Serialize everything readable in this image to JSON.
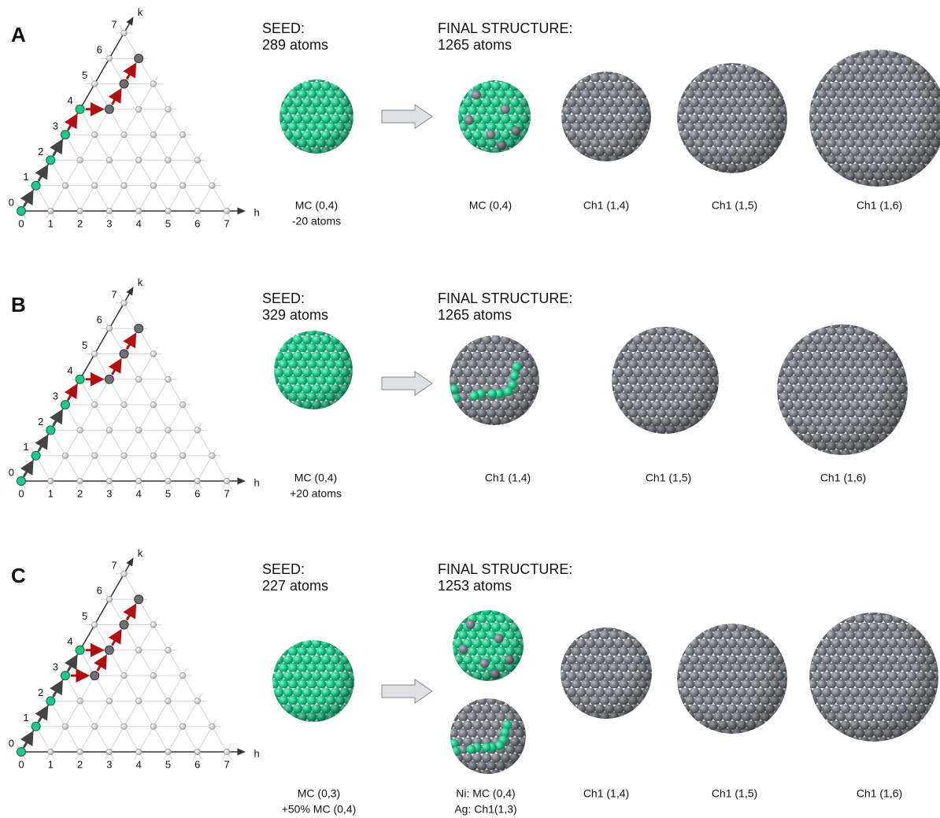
{
  "panels": [
    {
      "label": "A",
      "lattice": {
        "h_axis": "h",
        "k_axis": "k",
        "h_labels": [
          "0",
          "1",
          "2",
          "3",
          "4",
          "5",
          "6",
          "7"
        ],
        "k_labels": [
          "0",
          "1",
          "2",
          "3",
          "4",
          "5",
          "6",
          "7"
        ]
      },
      "seed": {
        "heading": "SEED:",
        "count": "289 atoms",
        "caption": [
          "MC (0,4)",
          "-20 atoms"
        ]
      },
      "final": {
        "heading": "FINAL STRUCTURE:",
        "count": "1265 atoms",
        "captions": [
          [
            "MC (0,4)"
          ],
          [
            "Ch1 (1,4)"
          ],
          [
            "Ch1 (1,5)"
          ],
          [
            "Ch1 (1,6)"
          ]
        ]
      }
    },
    {
      "label": "B",
      "lattice": {
        "h_axis": "h",
        "k_axis": "k",
        "h_labels": [
          "0",
          "1",
          "2",
          "3",
          "4",
          "5",
          "6",
          "7"
        ],
        "k_labels": [
          "0",
          "1",
          "2",
          "3",
          "4",
          "5",
          "6",
          "7"
        ]
      },
      "seed": {
        "heading": "SEED:",
        "count": "329 atoms",
        "caption": [
          "MC (0,4)",
          "+20 atoms"
        ]
      },
      "final": {
        "heading": "FINAL STRUCTURE:",
        "count": "1265 atoms",
        "captions": [
          [
            "Ch1 (1,4)"
          ],
          [
            "Ch1 (1,5)"
          ],
          [
            "Ch1 (1,6)"
          ]
        ]
      }
    },
    {
      "label": "C",
      "lattice": {
        "h_axis": "h",
        "k_axis": "k",
        "h_labels": [
          "0",
          "1",
          "2",
          "3",
          "4",
          "5",
          "6",
          "7"
        ],
        "k_labels": [
          "0",
          "1",
          "2",
          "3",
          "4",
          "5",
          "6",
          "7"
        ]
      },
      "seed": {
        "heading": "SEED:",
        "count": "227 atoms",
        "caption": [
          "MC (0,3)",
          "+50% MC (0,4)"
        ]
      },
      "final": {
        "heading": "FINAL STRUCTURE:",
        "count": "1253 atoms",
        "captions": [
          [
            "Ni: MC (0,4)",
            "Ag: Ch1(1,3)"
          ],
          [
            "Ch1 (1,4)"
          ],
          [
            "Ch1 (1,5)"
          ],
          [
            "Ch1 (1,6)"
          ]
        ]
      }
    }
  ]
}
